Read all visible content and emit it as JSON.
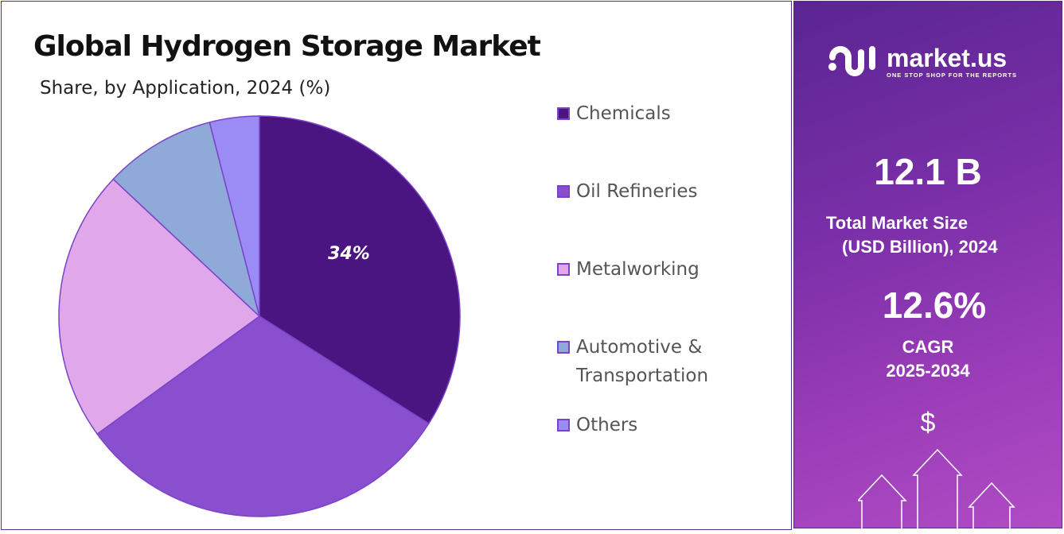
{
  "chart_data": {
    "type": "pie",
    "title": "Global Hydrogen Storage Market",
    "subtitle": "Share, by Application, 2024 (%)",
    "categories": [
      "Chemicals",
      "Oil Refineries",
      "Metalworking",
      "Automotive & Transportation",
      "Others"
    ],
    "legend_lines": [
      [
        "Chemicals"
      ],
      [
        "Oil Refineries"
      ],
      [
        "Metalworking"
      ],
      [
        "Automotive &",
        "Transportation"
      ],
      [
        "Others"
      ]
    ],
    "values": [
      34,
      31,
      22,
      9,
      4
    ],
    "colors": [
      "#4a1580",
      "#8a4fcf",
      "#e0a8ea",
      "#8faad8",
      "#9b8cf5"
    ],
    "data_labels": [
      "34%",
      "",
      "",
      "",
      ""
    ],
    "legend_position": "right"
  },
  "panel": {
    "logo_name": "market.us",
    "logo_tagline": "ONE STOP SHOP FOR THE REPORTS",
    "market_size": "12.1 B",
    "market_size_label_1": "Total Market Size",
    "market_size_label_2": "(USD Billion), 2024",
    "cagr": "12.6%",
    "cagr_label_1": "CAGR",
    "cagr_label_2": "2025-2034",
    "dollar": "$"
  }
}
